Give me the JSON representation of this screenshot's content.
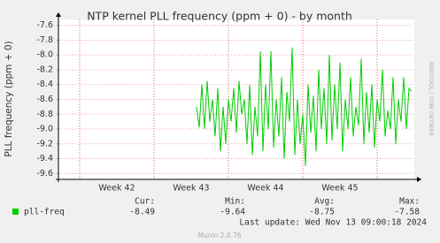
{
  "chart_data": {
    "type": "line",
    "title": "NTP kernel PLL frequency (ppm + 0) - by month",
    "y_label": "PLL frequency (ppm + 0)",
    "side_text": "RRDTOOL / TOBI OETIKER",
    "xlim": [
      0,
      33.5
    ],
    "xticks": [
      {
        "value": 5.5,
        "label": "Week 42"
      },
      {
        "value": 12.5,
        "label": "Week 43"
      },
      {
        "value": 19.5,
        "label": "Week 44"
      },
      {
        "value": 26.5,
        "label": "Week 45"
      }
    ],
    "ylim": [
      -9.68,
      -7.52
    ],
    "yticks": [
      -7.6,
      -7.8,
      {
        "value": -8,
        "label": "-8.0"
      },
      -8.2,
      -8.4,
      -8.6,
      -8.8,
      {
        "value": -9,
        "label": "-9.0"
      },
      -9.2,
      -9.4,
      -9.6
    ],
    "grid": true,
    "x": [
      13,
      13.25,
      13.5,
      13.75,
      14,
      14.25,
      14.5,
      14.75,
      15,
      15.25,
      15.5,
      15.75,
      16,
      16.25,
      16.5,
      16.75,
      17,
      17.25,
      17.5,
      17.75,
      18,
      18.25,
      18.5,
      18.75,
      19,
      19.25,
      19.5,
      19.75,
      20,
      20.25,
      20.5,
      20.75,
      21,
      21.25,
      21.5,
      21.75,
      22,
      22.25,
      22.5,
      22.75,
      23,
      23.25,
      23.5,
      23.75,
      24,
      24.25,
      24.5,
      24.75,
      25,
      25.25,
      25.5,
      25.75,
      26,
      26.25,
      26.5,
      26.75,
      27,
      27.25,
      27.5,
      27.75,
      28,
      28.25,
      28.5,
      28.75,
      29,
      29.25,
      29.5,
      29.75,
      30,
      30.25,
      30.5,
      30.75,
      31,
      31.25,
      31.5,
      31.75,
      32,
      32.25,
      32.5,
      32.75,
      33,
      33.25
    ],
    "series": [
      {
        "name": "pll-freq",
        "color": "#00cc00",
        "values": [
          -8.7,
          -8.98,
          -8.4,
          -9.0,
          -8.35,
          -8.9,
          -8.6,
          -9.1,
          -8.45,
          -9.3,
          -8.7,
          -9.2,
          -8.6,
          -8.9,
          -8.45,
          -9.05,
          -8.35,
          -8.8,
          -8.6,
          -9.2,
          -8.4,
          -9.35,
          -8.7,
          -9.1,
          -7.95,
          -9.3,
          -8.4,
          -9.0,
          -7.95,
          -9.25,
          -8.6,
          -9.1,
          -8.3,
          -9.4,
          -8.5,
          -8.9,
          -7.9,
          -9.35,
          -8.6,
          -9.2,
          -8.8,
          -9.5,
          -8.4,
          -9.05,
          -8.55,
          -9.3,
          -8.2,
          -9.0,
          -8.45,
          -9.2,
          -8.0,
          -9.15,
          -8.4,
          -9.0,
          -8.1,
          -9.3,
          -8.6,
          -9.0,
          -8.3,
          -9.1,
          -8.7,
          -8.95,
          -8.05,
          -9.2,
          -8.5,
          -9.05,
          -8.4,
          -9.25,
          -8.6,
          -8.9,
          -8.2,
          -9.1,
          -8.75,
          -9.0,
          -8.3,
          -9.2,
          -8.6,
          -8.9,
          -8.3,
          -9.0,
          -8.45,
          -8.49
        ],
        "stats": {
          "Cur:": -8.49,
          "Min:": -9.64,
          "Avg:": -8.75,
          "Max:": -7.58
        }
      }
    ],
    "last_update": "Last update: Wed Nov 13 09:00:18 2024",
    "footer": "Munin 2.0.76"
  }
}
